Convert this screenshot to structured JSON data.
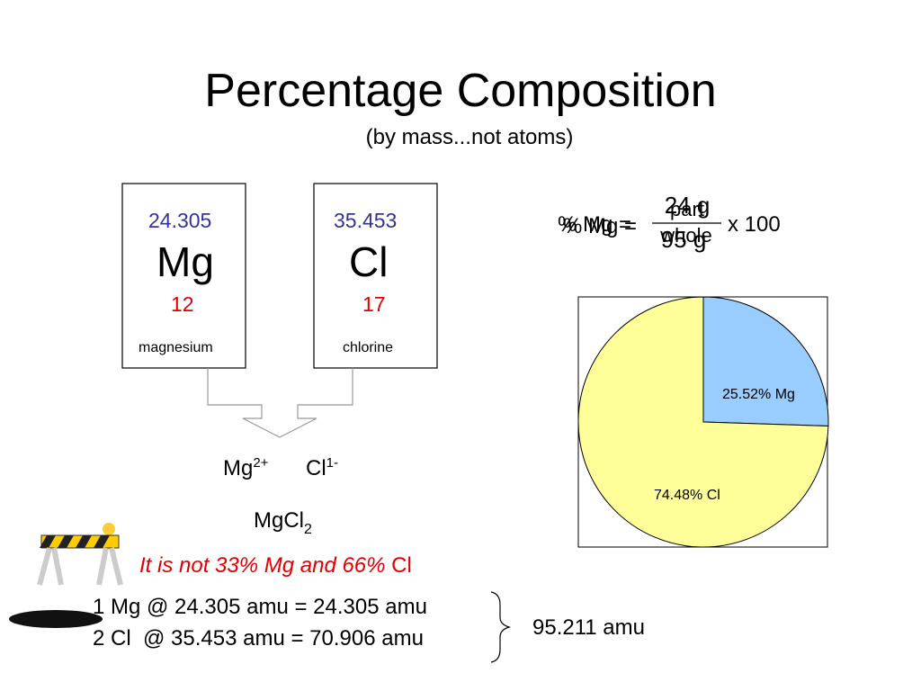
{
  "title": "Percentage Composition",
  "subtitle": "(by mass...not atoms)",
  "elements": [
    {
      "mass": "24.305",
      "symbol": "Mg",
      "number": "12",
      "name": "magnesium"
    },
    {
      "mass": "35.453",
      "symbol": "Cl",
      "number": "17",
      "name": "chlorine"
    }
  ],
  "formula": {
    "lhs": "% Mg =",
    "numerator": "part",
    "denominator": "whole",
    "multiplier": "x 100",
    "numerator_value": "24 g",
    "denominator_value": "95 g"
  },
  "ions": [
    {
      "symbol": "Mg",
      "charge": "2+"
    },
    {
      "symbol": "Cl",
      "charge": "1-"
    }
  ],
  "compound": {
    "symbol": "MgCl",
    "subscript": "2"
  },
  "warning": {
    "text": "It is not 33% Mg and 66% ",
    "tail": "Cl"
  },
  "calculation": {
    "lines": [
      "1 Mg @ 24.305 amu = 24.305 amu",
      "2 Cl  @ 35.453 amu = 70.906 amu"
    ],
    "total": "95.211 amu"
  },
  "chart_data": {
    "type": "pie",
    "values": [
      25.52,
      74.48
    ],
    "value_labels": [
      "25.52% Mg",
      "74.48% Cl"
    ],
    "colors": [
      "#99ccff",
      "#ffff99"
    ]
  }
}
